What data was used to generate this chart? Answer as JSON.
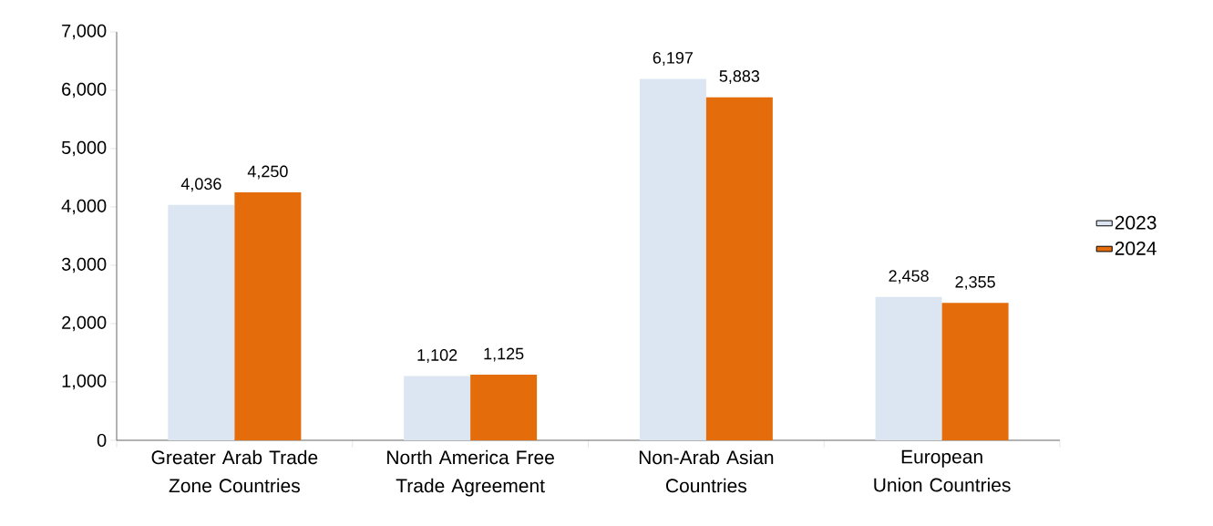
{
  "chart_data": {
    "type": "bar",
    "categories": [
      "Greater Arab Trade Zone Countries",
      "North America Free Trade Agreement",
      "Non-Arab Asian Countries",
      "European Union Countries"
    ],
    "series": [
      {
        "name": "2023",
        "color": "#dce6f2",
        "values": [
          4036,
          1102,
          6197,
          2458
        ],
        "value_labels": [
          "4,036",
          "1,102",
          "6,197",
          "2,458"
        ]
      },
      {
        "name": "2024",
        "color": "#e46c0a",
        "values": [
          4250,
          1125,
          5883,
          2355
        ],
        "value_labels": [
          "4,250",
          "1,125",
          "5,883",
          "2,355"
        ]
      }
    ],
    "ylim": [
      0,
      7000
    ],
    "yticks": [
      0,
      {
        "value": 1000,
        "label": "1,000"
      },
      {
        "value": 2000,
        "label": "2,000"
      },
      {
        "value": 3000,
        "label": "3,000"
      },
      {
        "value": 4000,
        "label": "4,000"
      },
      {
        "value": 5000,
        "label": "5,000"
      },
      {
        "value": 6000,
        "label": "6,000"
      },
      {
        "value": 7000,
        "label": "7,000"
      }
    ],
    "legend": "right",
    "grid": false
  }
}
